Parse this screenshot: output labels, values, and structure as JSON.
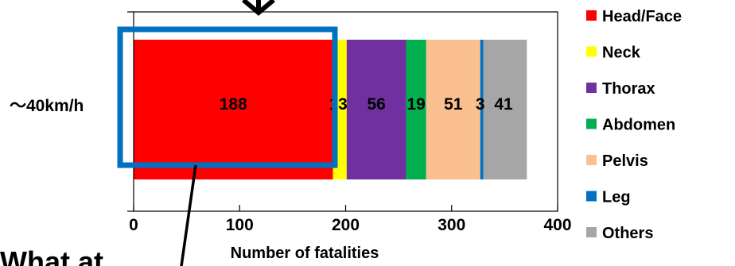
{
  "chart_data": {
    "type": "bar",
    "orientation": "horizontal",
    "stacked": true,
    "categories": [
      "～40km/h"
    ],
    "series": [
      {
        "name": "Head/Face",
        "values": [
          188
        ],
        "color": "#ff0000"
      },
      {
        "name": "Neck",
        "values": [
          13
        ],
        "color": "#ffff00"
      },
      {
        "name": "Thorax",
        "values": [
          56
        ],
        "color": "#7030a0"
      },
      {
        "name": "Abdomen",
        "values": [
          19
        ],
        "color": "#00b050"
      },
      {
        "name": "Pelvis",
        "values": [
          51
        ],
        "color": "#fac090"
      },
      {
        "name": "Leg",
        "values": [
          3
        ],
        "color": "#0070c0"
      },
      {
        "name": "Others",
        "values": [
          41
        ],
        "color": "#a6a6a6"
      }
    ],
    "data_labels": [
      "188",
      "13",
      "56",
      "19",
      "51",
      "3",
      "41"
    ],
    "xlabel": "Number of fatalities",
    "ylabel": "",
    "xlim": [
      0,
      400
    ],
    "xticks": [
      0,
      100,
      200,
      300,
      400
    ],
    "xtick_labels": [
      "0",
      "100",
      "200",
      "300",
      "400"
    ],
    "grid": false,
    "legend_position": "right"
  },
  "annotations": {
    "highlight_box_color": "#0070c0",
    "partial_callout_text": "What at…"
  }
}
